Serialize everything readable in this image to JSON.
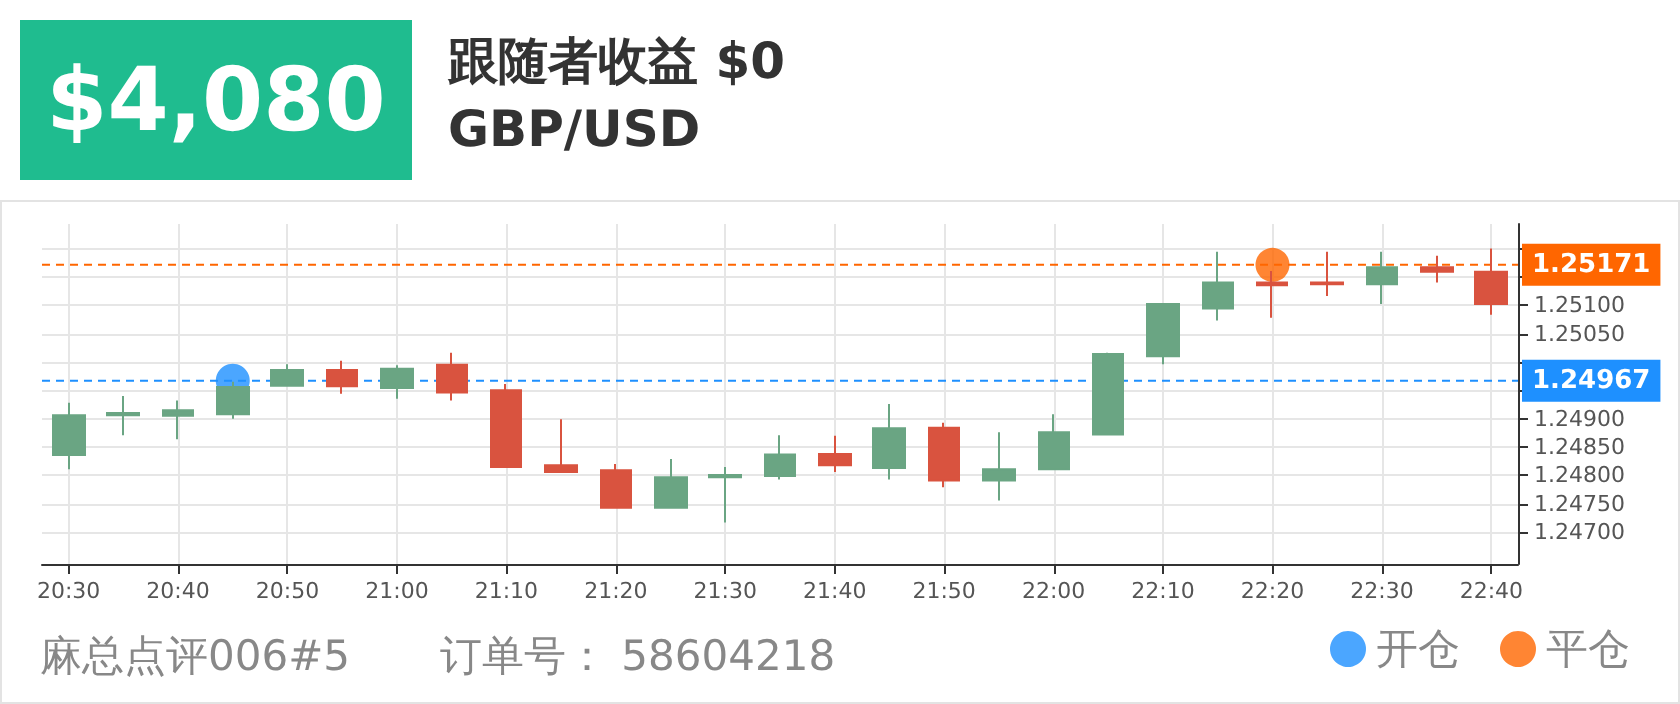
{
  "chart_data": {
    "type": "candlestick",
    "title": "跟随者收益 $0",
    "subtitle": "GBP/USD",
    "annotations": [
      "$4,080",
      "麻总点评006#5",
      "订单号：  58604218"
    ],
    "x": [
      20.5,
      20.58333,
      20.66667,
      20.75,
      20.83333,
      20.91667,
      21,
      21.08333,
      21.16667,
      21.25,
      21.33333,
      21.41667,
      21.5,
      21.58333,
      21.66667,
      21.75,
      21.83333,
      21.91667,
      22,
      22.08333,
      22.16667,
      22.25,
      22.33333,
      22.41667,
      22.5,
      22.58333,
      22.66667
    ],
    "ohlc": [
      [
        1.24836,
        1.24928,
        1.24811,
        1.24906
      ],
      [
        1.24906,
        1.2494,
        1.24871,
        1.2491
      ],
      [
        1.24905,
        1.24932,
        1.24864,
        1.24915
      ],
      [
        1.24908,
        1.24965,
        1.249,
        1.24956
      ],
      [
        1.24958,
        1.24996,
        1.24958,
        1.24986
      ],
      [
        1.24986,
        1.25002,
        1.24944,
        1.24957
      ],
      [
        1.24954,
        1.24994,
        1.24935,
        1.24988
      ],
      [
        1.24995,
        1.25016,
        1.24932,
        1.24946
      ],
      [
        1.2495,
        1.24961,
        1.24815,
        1.24815
      ],
      [
        1.24818,
        1.24899,
        1.24806,
        1.24806
      ],
      [
        1.24809,
        1.2482,
        1.24743,
        1.24743
      ],
      [
        1.24743,
        1.24829,
        1.24743,
        1.24797
      ],
      [
        1.24797,
        1.24815,
        1.24717,
        1.24801
      ],
      [
        1.24799,
        1.24871,
        1.24793,
        1.24837
      ],
      [
        1.24838,
        1.2487,
        1.24806,
        1.24818
      ],
      [
        1.24813,
        1.24926,
        1.24793,
        1.24883
      ],
      [
        1.24884,
        1.24893,
        1.24779,
        1.24791
      ],
      [
        1.24791,
        1.24876,
        1.24756,
        1.24811
      ],
      [
        1.24811,
        1.24908,
        1.24811,
        1.24876
      ],
      [
        1.24872,
        1.25016,
        1.24872,
        1.25014
      ],
      [
        1.2501,
        1.25102,
        1.24996,
        1.25102
      ],
      [
        1.25094,
        1.25194,
        1.25073,
        1.2514
      ],
      [
        1.2514,
        1.2516,
        1.25078,
        1.25135
      ],
      [
        1.2514,
        1.25194,
        1.25116,
        1.25137
      ],
      [
        1.25137,
        1.25194,
        1.25102,
        1.25167
      ],
      [
        1.25167,
        1.25187,
        1.2514,
        1.25159
      ],
      [
        1.25159,
        1.252,
        1.25083,
        1.25102
      ]
    ],
    "colors": [
      "#6aa583",
      "#6aa583",
      "#6aa583",
      "#6aa583",
      "#6aa583",
      "#d9533f",
      "#6aa583",
      "#d9533f",
      "#d9533f",
      "#d9533f",
      "#d9533f",
      "#6aa583",
      "#6aa583",
      "#6aa583",
      "#d9533f",
      "#6aa583",
      "#d9533f",
      "#6aa583",
      "#6aa583",
      "#6aa583",
      "#6aa583",
      "#6aa583",
      "#d9533f",
      "#d9533f",
      "#6aa583",
      "#d9533f",
      "#d9533f"
    ],
    "series": [
      {
        "type": "scatter",
        "name": "开仓",
        "color": "#1e90ff",
        "x": [
          20.75
        ],
        "values": [
          1.24967
        ]
      },
      {
        "type": "scatter",
        "name": "平仓",
        "color": "#ff6600",
        "x": [
          22.33333
        ],
        "values": [
          1.25171
        ]
      }
    ],
    "ref_lines": [
      {
        "axis": "y",
        "value": 1.25171,
        "label": "1.25171",
        "color": "#ff6600",
        "line_style": "dashed"
      },
      {
        "axis": "y",
        "value": 1.24967,
        "label": "1.24967",
        "color": "#1e90ff",
        "line_style": "dashed"
      }
    ],
    "xlim": [
      20.4595,
      22.7072
    ],
    "xticks": [
      {
        "value": 20.5,
        "label": "20:30"
      },
      {
        "value": 20.66667,
        "label": "20:40"
      },
      {
        "value": 20.83333,
        "label": "20:50"
      },
      {
        "value": 21,
        "label": "21:00"
      },
      {
        "value": 21.16667,
        "label": "21:10"
      },
      {
        "value": 21.33333,
        "label": "21:20"
      },
      {
        "value": 21.5,
        "label": "21:30"
      },
      {
        "value": 21.66667,
        "label": "21:40"
      },
      {
        "value": 21.83333,
        "label": "21:50"
      },
      {
        "value": 22,
        "label": "22:00"
      },
      {
        "value": 22.16667,
        "label": "22:10"
      },
      {
        "value": 22.33333,
        "label": "22:20"
      },
      {
        "value": 22.5,
        "label": "22:30"
      },
      {
        "value": 22.66667,
        "label": "22:40"
      }
    ],
    "ylim": [
      1.24644,
      1.25243
    ],
    "yticks": [
      {
        "value": 1.247,
        "label": "1.24700"
      },
      {
        "value": 1.2475,
        "label": "1.24750"
      },
      {
        "value": 1.248,
        "label": "1.24800"
      },
      {
        "value": 1.2485,
        "label": "1.24850"
      },
      {
        "value": 1.249,
        "label": "1.24900"
      },
      {
        "value": 1.2495,
        "label": null
      },
      {
        "value": 1.25,
        "label": null
      },
      {
        "value": 1.2505,
        "label": "1.25050"
      },
      {
        "value": 1.251,
        "label": "1.25100"
      },
      {
        "value": 1.2515,
        "label": null
      },
      {
        "value": 1.252,
        "label": null
      }
    ],
    "grid": true,
    "legend": "bottom right",
    "marker": "circle"
  }
}
